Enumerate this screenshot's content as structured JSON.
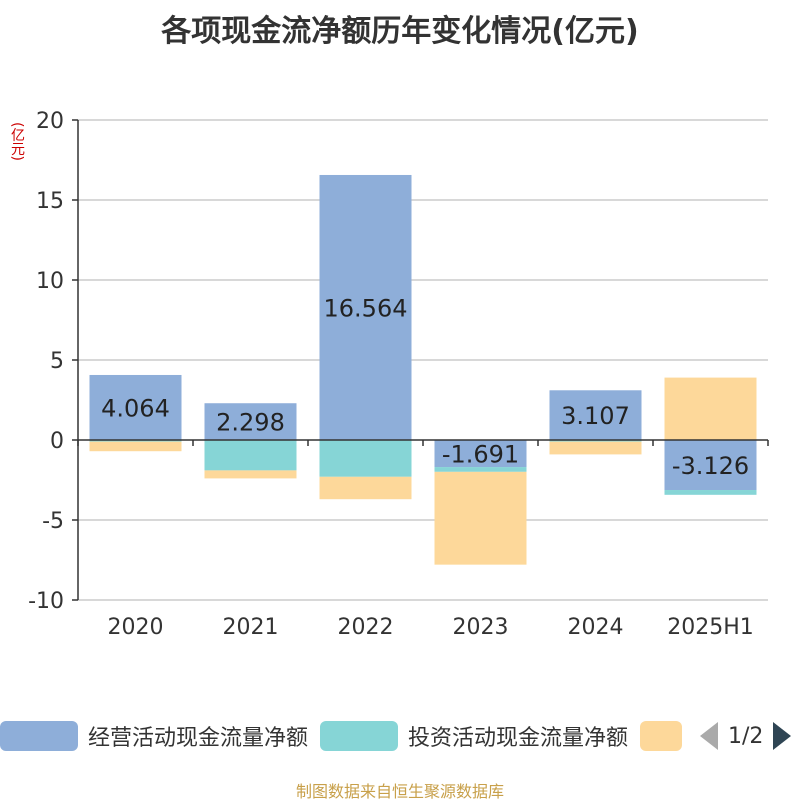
{
  "title": "各项现金流净额历年变化情况(亿元)",
  "unit_label": "(亿元)",
  "source": "制图数据来自恒生聚源数据库",
  "legend": {
    "items": [
      {
        "label": "经营活动现金流量净额",
        "color": "#8eaed9"
      },
      {
        "label": "投资活动现金流量净额",
        "color": "#86d5d6"
      },
      {
        "label": "",
        "color": "#fdd89a"
      }
    ],
    "page": "1/2"
  },
  "chart_data": {
    "type": "bar",
    "stacked": true,
    "categories": [
      "2020",
      "2021",
      "2022",
      "2023",
      "2024",
      "2025H1"
    ],
    "ylim": [
      -10,
      20
    ],
    "yticks": [
      -10,
      -5,
      0,
      5,
      10,
      15,
      20
    ],
    "grid": true,
    "legend_position": "bottom",
    "series": [
      {
        "name": "经营活动现金流量净额",
        "color": "#8eaed9",
        "values": [
          4.064,
          2.298,
          16.564,
          -1.691,
          3.107,
          -3.126
        ],
        "labels": [
          "4.064",
          "2.298",
          "16.564",
          "-1.691",
          "3.107",
          "-3.126"
        ]
      },
      {
        "name": "投资活动现金流量净额",
        "color": "#86d5d6",
        "values": [
          -0.1,
          -1.9,
          -2.3,
          -0.3,
          -0.1,
          -0.3
        ]
      },
      {
        "color": "#fdd89a",
        "values": [
          -0.6,
          -0.5,
          -1.4,
          -5.8,
          -0.8,
          3.9
        ]
      }
    ]
  }
}
